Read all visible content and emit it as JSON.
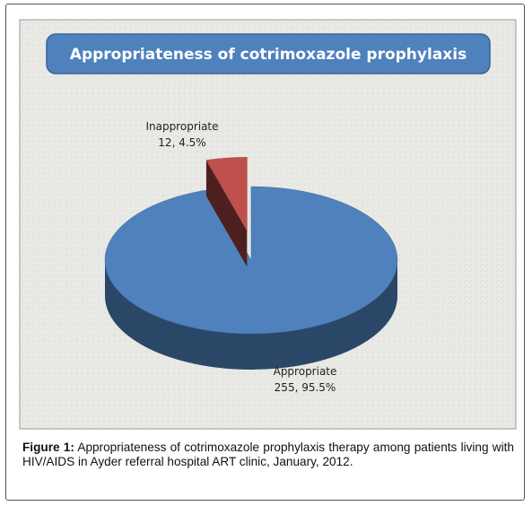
{
  "chart_data": {
    "type": "pie",
    "title": "Appropriateness of cotrimoxazole prophylaxis",
    "categories": [
      "Appropriate",
      "Inappropriate"
    ],
    "values": [
      255,
      12
    ],
    "value_labels": [
      "255, 95.5%",
      "12, 4.5%"
    ],
    "colors": [
      "#4f81bd",
      "#c0504d"
    ],
    "exploded": [
      false,
      true
    ]
  },
  "caption": {
    "label": "Figure 1:",
    "text": "Appropriateness of cotrimoxazole prophylaxis therapy among patients living with HIV/AIDS in Ayder referral hospital ART clinic, January, 2012."
  }
}
